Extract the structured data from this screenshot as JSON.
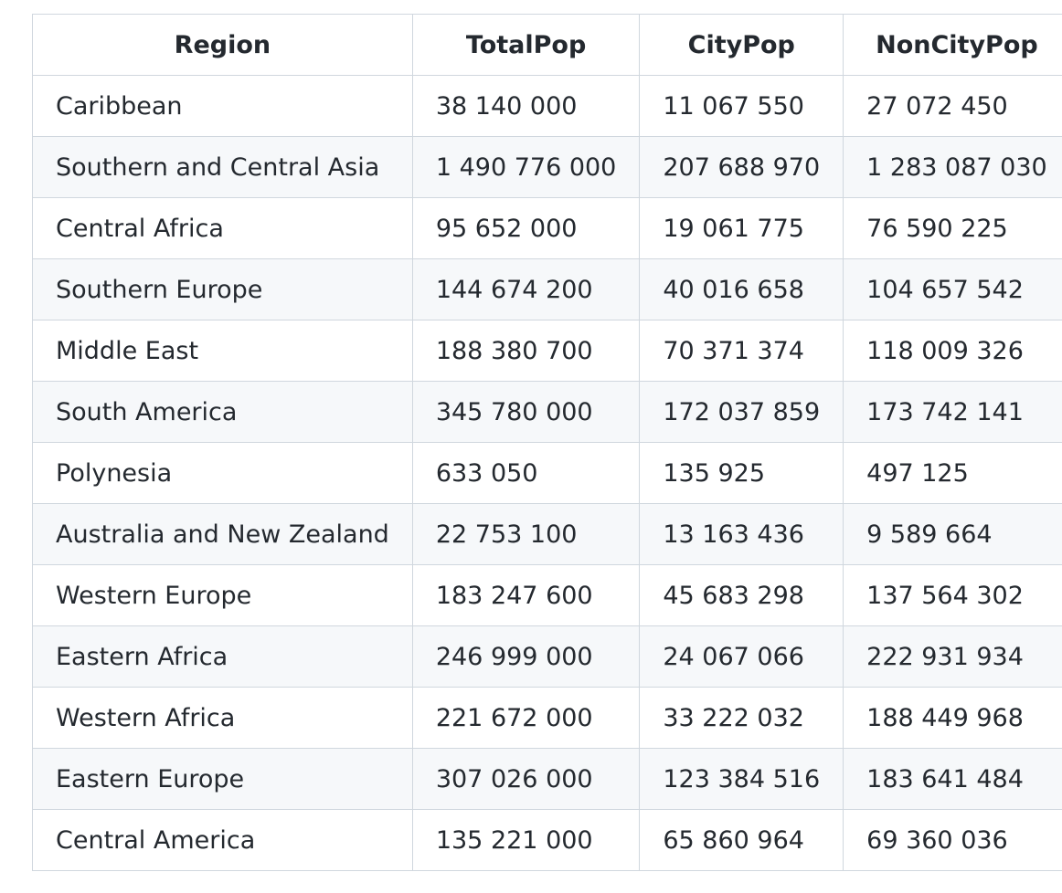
{
  "table": {
    "headers": [
      "Region",
      "TotalPop",
      "CityPop",
      "NonCityPop"
    ],
    "rows": [
      [
        "Caribbean",
        "38 140 000",
        "11 067 550",
        "27 072 450"
      ],
      [
        "Southern and Central Asia",
        "1 490 776 000",
        "207 688 970",
        "1 283 087 030"
      ],
      [
        "Central Africa",
        "95 652 000",
        "19 061 775",
        "76 590 225"
      ],
      [
        "Southern Europe",
        "144 674 200",
        "40 016 658",
        "104 657 542"
      ],
      [
        "Middle East",
        "188 380 700",
        "70 371 374",
        "118 009 326"
      ],
      [
        "South America",
        "345 780 000",
        "172 037 859",
        "173 742 141"
      ],
      [
        "Polynesia",
        "633 050",
        "135 925",
        "497 125"
      ],
      [
        "Australia and New Zealand",
        "22 753 100",
        "13 163 436",
        "9 589 664"
      ],
      [
        "Western Europe",
        "183 247 600",
        "45 683 298",
        "137 564 302"
      ],
      [
        "Eastern Africa",
        "246 999 000",
        "24 067 066",
        "222 931 934"
      ],
      [
        "Western Africa",
        "221 672 000",
        "33 222 032",
        "188 449 968"
      ],
      [
        "Eastern Europe",
        "307 026 000",
        "123 384 516",
        "183 641 484"
      ],
      [
        "Central America",
        "135 221 000",
        "65 860 964",
        "69 360 036"
      ]
    ]
  },
  "colors": {
    "text": "#24292f",
    "border": "#d0d7de",
    "stripe": "#f6f8fa",
    "background": "#ffffff"
  }
}
